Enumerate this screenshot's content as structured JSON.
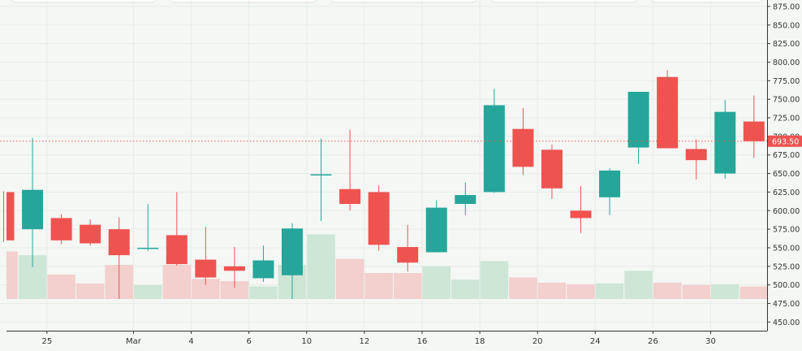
{
  "chart_data": {
    "type": "candlestick",
    "y_ticks": [
      "875.00",
      "850.00",
      "825.00",
      "800.00",
      "775.00",
      "750.00",
      "725.00",
      "700.00",
      "675.00",
      "650.00",
      "625.00",
      "600.00",
      "575.00",
      "550.00",
      "525.00",
      "500.00",
      "475.00",
      "450.00"
    ],
    "y_range": [
      440,
      880
    ],
    "x_tick_labels": [
      {
        "label": "25",
        "index": 1.5
      },
      {
        "label": "Mar",
        "index": 4.5
      },
      {
        "label": "4",
        "index": 6.5
      },
      {
        "label": "6",
        "index": 8.5
      },
      {
        "label": "10",
        "index": 10.5
      },
      {
        "label": "12",
        "index": 12.5
      },
      {
        "label": "16",
        "index": 14.5
      },
      {
        "label": "18",
        "index": 16.5
      },
      {
        "label": "20",
        "index": 18.5
      },
      {
        "label": "24",
        "index": 20.5
      },
      {
        "label": "26",
        "index": 22.5
      },
      {
        "label": "30",
        "index": 24.5
      }
    ],
    "candles": [
      {
        "o": 625,
        "h": 626,
        "l": 558,
        "c": 560
      },
      {
        "o": 575,
        "h": 698,
        "l": 524,
        "c": 628
      },
      {
        "o": 590,
        "h": 595,
        "l": 555,
        "c": 560
      },
      {
        "o": 581,
        "h": 588,
        "l": 553,
        "c": 556
      },
      {
        "o": 575,
        "h": 591,
        "l": 481,
        "c": 540
      },
      {
        "o": 550,
        "h": 609,
        "l": 546,
        "c": 550
      },
      {
        "o": 567,
        "h": 625,
        "l": 526,
        "c": 528
      },
      {
        "o": 534,
        "h": 578,
        "l": 500,
        "c": 510
      },
      {
        "o": 525,
        "h": 551,
        "l": 496,
        "c": 519
      },
      {
        "o": 509,
        "h": 553,
        "l": 504,
        "c": 533
      },
      {
        "o": 513,
        "h": 583,
        "l": 481,
        "c": 576
      },
      {
        "o": 648,
        "h": 697,
        "l": 586,
        "c": 649
      },
      {
        "o": 629,
        "h": 709,
        "l": 600,
        "c": 609
      },
      {
        "o": 625,
        "h": 634,
        "l": 546,
        "c": 554
      },
      {
        "o": 551,
        "h": 581,
        "l": 518,
        "c": 530
      },
      {
        "o": 544,
        "h": 614,
        "l": 544,
        "c": 604
      },
      {
        "o": 609,
        "h": 638,
        "l": 594,
        "c": 621
      },
      {
        "o": 625,
        "h": 764,
        "l": 624,
        "c": 742
      },
      {
        "o": 710,
        "h": 738,
        "l": 648,
        "c": 659
      },
      {
        "o": 682,
        "h": 689,
        "l": 616,
        "c": 630
      },
      {
        "o": 600,
        "h": 633,
        "l": 570,
        "c": 590
      },
      {
        "o": 618,
        "h": 657,
        "l": 594,
        "c": 654
      },
      {
        "o": 685,
        "h": 760,
        "l": 663,
        "c": 760
      },
      {
        "o": 780,
        "h": 789,
        "l": 684,
        "c": 684
      },
      {
        "o": 683,
        "h": 696,
        "l": 642,
        "c": 668
      },
      {
        "o": 650,
        "h": 749,
        "l": 643,
        "c": 733
      },
      {
        "o": 720,
        "h": 755,
        "l": 671,
        "c": 693.5
      }
    ],
    "volume_tops": [
      545,
      540,
      514,
      502,
      527,
      500,
      527,
      508,
      505,
      498,
      527,
      568,
      535,
      516,
      516,
      525,
      507,
      532,
      510,
      503,
      501,
      502,
      519,
      503,
      500,
      501,
      498
    ],
    "last_price": 693.5,
    "last_price_label": "693.50",
    "colors": {
      "up": "#26a69a",
      "down": "#ef5350",
      "vol_up": "#cde6d6",
      "vol_down": "#f3cfcd",
      "background": "#f4f7f4",
      "grid": "#e8ece9",
      "axis": "#333333",
      "price_label_bg": "#ef5350"
    }
  }
}
